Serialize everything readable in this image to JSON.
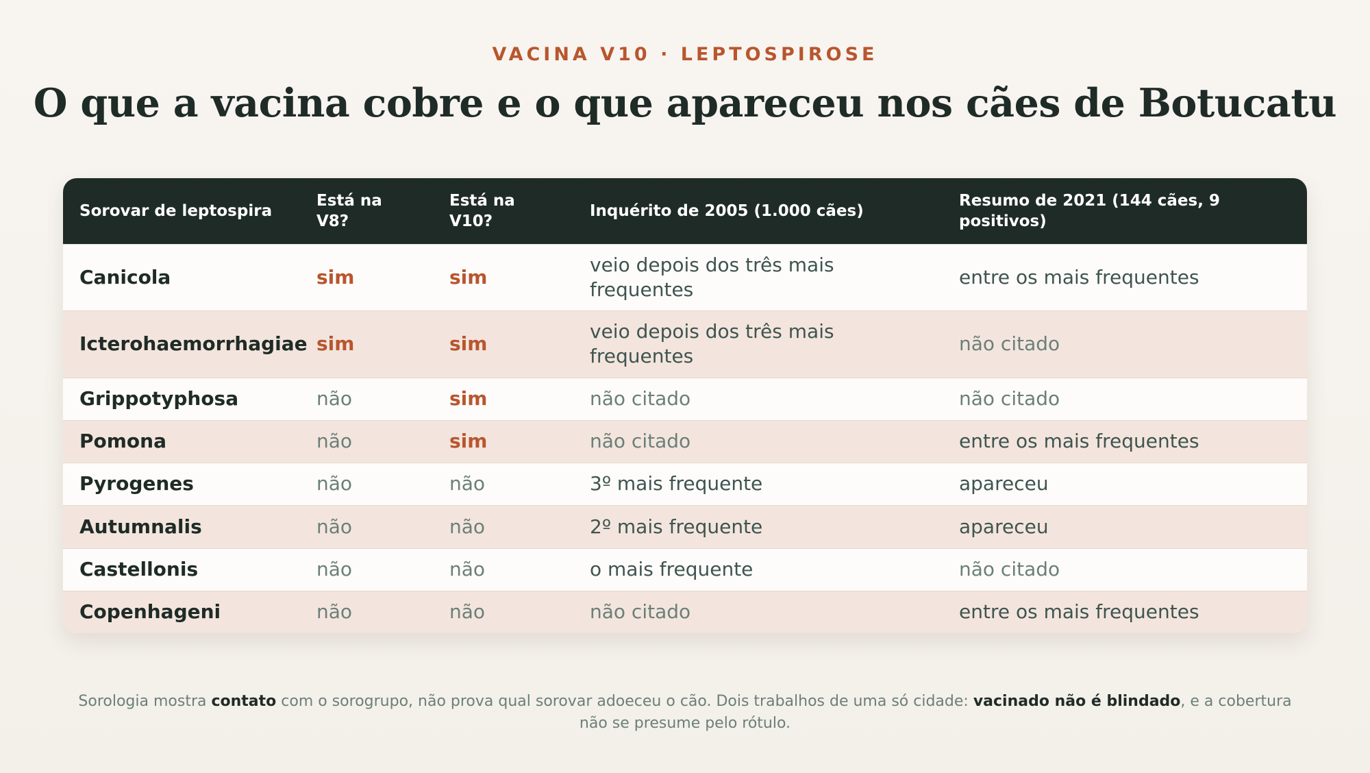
{
  "header": {
    "kicker": "VACINA V10 · LEPTOSPIROSE",
    "title": "O que a vacina cobre e o que apareceu nos cães de Botucatu"
  },
  "table": {
    "columns": [
      "Sorovar de leptospira",
      "Está na V8?",
      "Está na V10?",
      "Inquérito de 2005 (1.000 cães)",
      "Resumo de 2021 (144 cães, 9 positivos)"
    ],
    "rows": [
      {
        "sorovar": "Canicola",
        "v8": "sim",
        "v10": "sim",
        "inq2005": "veio depois dos três mais frequentes",
        "res2021": "entre os mais frequentes"
      },
      {
        "sorovar": "Icterohaemorrhagiae",
        "v8": "sim",
        "v10": "sim",
        "inq2005": "veio depois dos três mais frequentes",
        "res2021": "não citado"
      },
      {
        "sorovar": "Grippotyphosa",
        "v8": "não",
        "v10": "sim",
        "inq2005": "não citado",
        "res2021": "não citado"
      },
      {
        "sorovar": "Pomona",
        "v8": "não",
        "v10": "sim",
        "inq2005": "não citado",
        "res2021": "entre os mais frequentes"
      },
      {
        "sorovar": "Pyrogenes",
        "v8": "não",
        "v10": "não",
        "inq2005": "3º mais frequente",
        "res2021": "apareceu"
      },
      {
        "sorovar": "Autumnalis",
        "v8": "não",
        "v10": "não",
        "inq2005": "2º mais frequente",
        "res2021": "apareceu"
      },
      {
        "sorovar": "Castellonis",
        "v8": "não",
        "v10": "não",
        "inq2005": "o mais frequente",
        "res2021": "não citado"
      },
      {
        "sorovar": "Copenhageni",
        "v8": "não",
        "v10": "não",
        "inq2005": "não citado",
        "res2021": "entre os mais frequentes"
      }
    ]
  },
  "footnote": {
    "part1": "Sorologia mostra ",
    "bold1": "contato",
    "part2": " com o sorogrupo, não prova qual sorovar adoeceu o cão. Dois trabalhos de uma só cidade: ",
    "bold2": "vacinado não é blindado",
    "part3": ", e a cobertura não se presume pelo rótulo."
  },
  "colors": {
    "accent": "#b8562e",
    "header_bg": "#1f2b27",
    "row_alt": "#f3e5dd",
    "muted": "#6b7f79"
  }
}
